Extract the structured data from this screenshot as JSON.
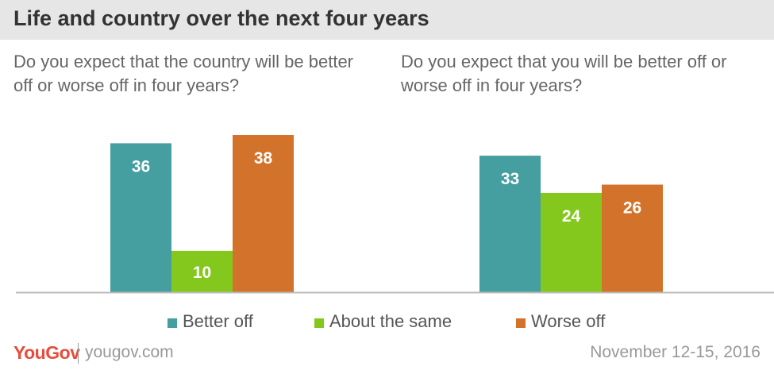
{
  "title": "Life and country over the next four years",
  "colors": {
    "better": "#459e9f",
    "same": "#84c81d",
    "worse": "#d3722a",
    "axis": "#bbbbbb",
    "label": "#ffffff"
  },
  "legend": [
    {
      "label": "Better off",
      "color": "#459e9f"
    },
    {
      "label": "About the same",
      "color": "#84c81d"
    },
    {
      "label": "Worse off",
      "color": "#d3722a"
    }
  ],
  "chart_data": [
    {
      "type": "bar",
      "title": "Do you expect that the country will be better off or worse off in four years?",
      "categories": [
        "Better off",
        "About the same",
        "Worse off"
      ],
      "values": [
        36,
        10,
        38
      ],
      "ylim": [
        0,
        40
      ]
    },
    {
      "type": "bar",
      "title": "Do you expect that you will be better off or worse off in four years?",
      "categories": [
        "Better off",
        "About the same",
        "Worse off"
      ],
      "values": [
        33,
        24,
        26
      ],
      "ylim": [
        0,
        40
      ]
    }
  ],
  "footer": {
    "brand": "YouGov",
    "url": "yougov.com",
    "date": "November 12-15, 2016"
  }
}
